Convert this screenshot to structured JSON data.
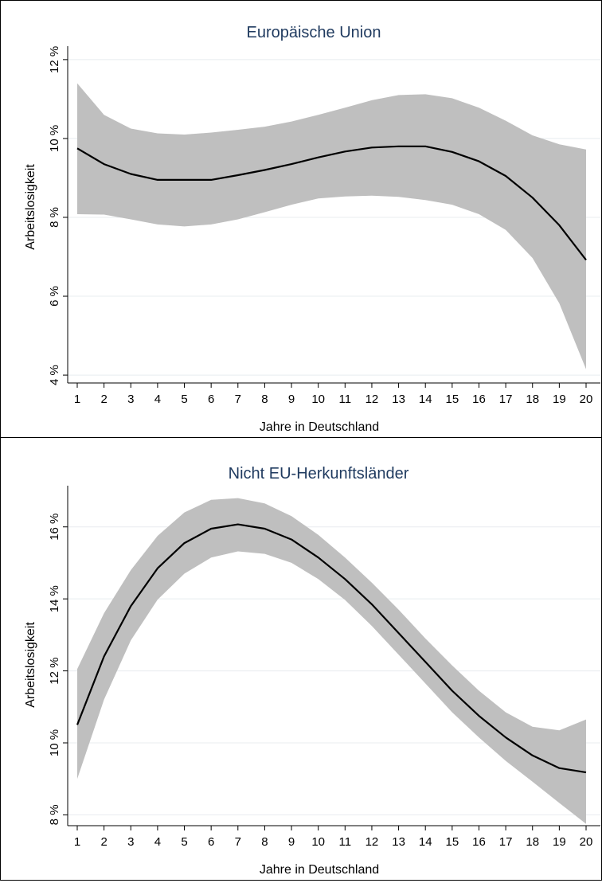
{
  "chart_data": [
    {
      "type": "line",
      "title": "Europäische Union",
      "xlabel": "Jahre in Deutschland",
      "ylabel": "Arbeitslosigkeit",
      "x": [
        1,
        2,
        3,
        4,
        5,
        6,
        7,
        8,
        9,
        10,
        11,
        12,
        13,
        14,
        15,
        16,
        17,
        18,
        19,
        20
      ],
      "xticks": [
        "1",
        "2",
        "3",
        "4",
        "5",
        "6",
        "7",
        "8",
        "9",
        "10",
        "11",
        "12",
        "13",
        "14",
        "15",
        "16",
        "17",
        "18",
        "19",
        "20"
      ],
      "yticks": [
        {
          "value": 4,
          "label": "4 %"
        },
        {
          "value": 6,
          "label": "6 %"
        },
        {
          "value": 8,
          "label": "8 %"
        },
        {
          "value": 10,
          "label": "10 %"
        },
        {
          "value": 12,
          "label": "12 %"
        }
      ],
      "ylim": [
        3.8,
        12.3
      ],
      "series": [
        {
          "values": [
            9.75,
            9.35,
            9.1,
            8.95,
            8.95,
            8.95,
            9.07,
            9.2,
            9.35,
            9.52,
            9.67,
            9.77,
            9.8,
            9.8,
            9.66,
            9.42,
            9.05,
            8.5,
            7.8,
            6.92
          ]
        }
      ],
      "ci_band": {
        "upper": [
          11.4,
          10.6,
          10.25,
          10.13,
          10.1,
          10.15,
          10.22,
          10.3,
          10.43,
          10.6,
          10.78,
          10.97,
          11.1,
          11.12,
          11.02,
          10.78,
          10.45,
          10.08,
          9.85,
          9.72
        ],
        "lower": [
          8.08,
          8.07,
          7.95,
          7.82,
          7.77,
          7.82,
          7.95,
          8.13,
          8.32,
          8.48,
          8.53,
          8.55,
          8.52,
          8.44,
          8.32,
          8.08,
          7.68,
          6.97,
          5.82,
          4.15
        ]
      },
      "colors": {
        "line": "#000000",
        "band": "#bfbfbf",
        "title": "#1f3a5f",
        "grid": "#e8ecef"
      },
      "grid": true
    },
    {
      "type": "line",
      "title": "Nicht EU-Herkunftsländer",
      "xlabel": "Jahre in Deutschland",
      "ylabel": "Arbeitslosigkeit",
      "x": [
        1,
        2,
        3,
        4,
        5,
        6,
        7,
        8,
        9,
        10,
        11,
        12,
        13,
        14,
        15,
        16,
        17,
        18,
        19,
        20
      ],
      "xticks": [
        "1",
        "2",
        "3",
        "4",
        "5",
        "6",
        "7",
        "8",
        "9",
        "10",
        "11",
        "12",
        "13",
        "14",
        "15",
        "16",
        "17",
        "18",
        "19",
        "20"
      ],
      "yticks": [
        {
          "value": 8,
          "label": "8 %"
        },
        {
          "value": 10,
          "label": "10 %"
        },
        {
          "value": 12,
          "label": "12 %"
        },
        {
          "value": 14,
          "label": "14 %"
        },
        {
          "value": 16,
          "label": "16 %"
        }
      ],
      "ylim": [
        7.7,
        17.1
      ],
      "series": [
        {
          "values": [
            10.5,
            12.4,
            13.8,
            14.85,
            15.55,
            15.95,
            16.07,
            15.95,
            15.65,
            15.15,
            14.55,
            13.85,
            13.05,
            12.25,
            11.45,
            10.75,
            10.15,
            9.65,
            9.3,
            9.18
          ]
        }
      ],
      "ci_band": {
        "upper": [
          12.05,
          13.6,
          14.8,
          15.75,
          16.4,
          16.75,
          16.8,
          16.65,
          16.3,
          15.78,
          15.15,
          14.45,
          13.7,
          12.9,
          12.15,
          11.45,
          10.85,
          10.45,
          10.35,
          10.65
        ],
        "lower": [
          9.0,
          11.2,
          12.85,
          13.98,
          14.7,
          15.15,
          15.32,
          15.25,
          15.0,
          14.55,
          13.97,
          13.25,
          12.45,
          11.65,
          10.85,
          10.15,
          9.5,
          8.92,
          8.33,
          7.75
        ]
      },
      "colors": {
        "line": "#000000",
        "band": "#bfbfbf",
        "title": "#1f3a5f",
        "grid": "#e8ecef"
      },
      "grid": true
    }
  ]
}
